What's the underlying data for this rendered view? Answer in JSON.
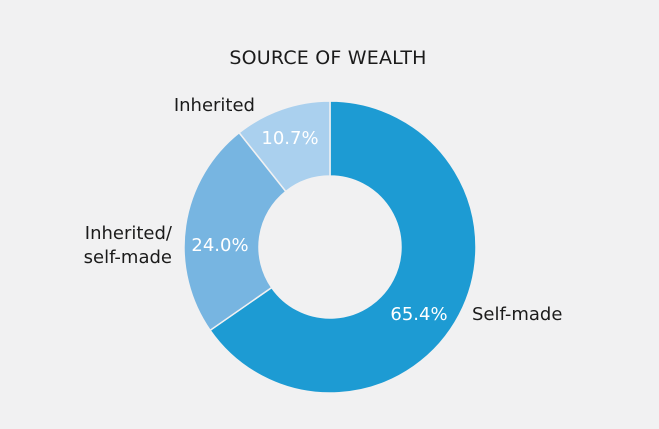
{
  "chart_data": {
    "type": "pie",
    "title": "SOURCE OF WEALTH",
    "slices": [
      {
        "name": "Self-made",
        "value": 65.4,
        "label": "65.4%",
        "color": "#1d9bd3",
        "category_lines": [
          "Self-made"
        ]
      },
      {
        "name": "Inherited/ self-made",
        "value": 24.0,
        "label": "24.0%",
        "color": "#77b5e1",
        "category_lines": [
          "Inherited/",
          "self-made"
        ]
      },
      {
        "name": "Inherited",
        "value": 10.7,
        "label": "10.7%",
        "color": "#aad0ee",
        "category_lines": [
          "Inherited"
        ]
      }
    ],
    "donut": true,
    "legend": "none"
  }
}
